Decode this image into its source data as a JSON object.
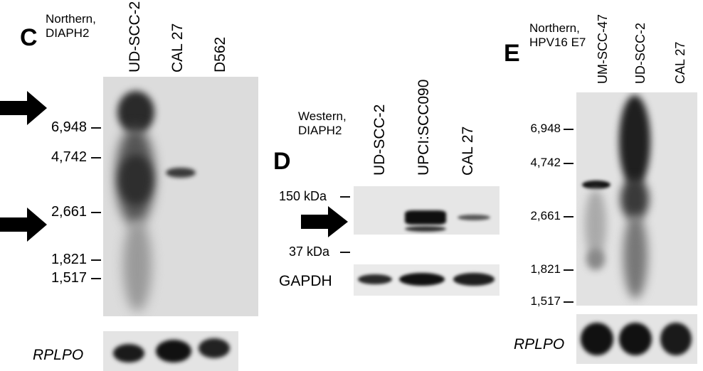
{
  "panel_c": {
    "letter": "C",
    "label_line1": "Northern,",
    "label_line2": "DIAPH2",
    "lanes": [
      "UD-SCC-2",
      "CAL 27",
      "D562"
    ],
    "sizes": [
      "6,948",
      "4,742",
      "2,661",
      "1,821",
      "1,517"
    ],
    "loading_label": "RPLPO"
  },
  "panel_d": {
    "letter": "D",
    "label_line1": "Western,",
    "label_line2": "DIAPH2",
    "lanes": [
      "UD-SCC-2",
      "UPCI:SCC090",
      "CAL 27"
    ],
    "markers": [
      "150 kDa",
      "37 kDa"
    ],
    "loading_label": "GAPDH"
  },
  "panel_e": {
    "letter": "E",
    "label_line1": "Northern,",
    "label_line2": "HPV16 E7",
    "lanes": [
      "UM-SCC-47",
      "UD-SCC-2",
      "CAL 27"
    ],
    "sizes": [
      "6,948",
      "4,742",
      "2,661",
      "1,821",
      "1,517"
    ],
    "loading_label": "RPLPO"
  },
  "colors": {
    "blot_bg": "#dcdcdc",
    "band": "#1a1a1a"
  }
}
